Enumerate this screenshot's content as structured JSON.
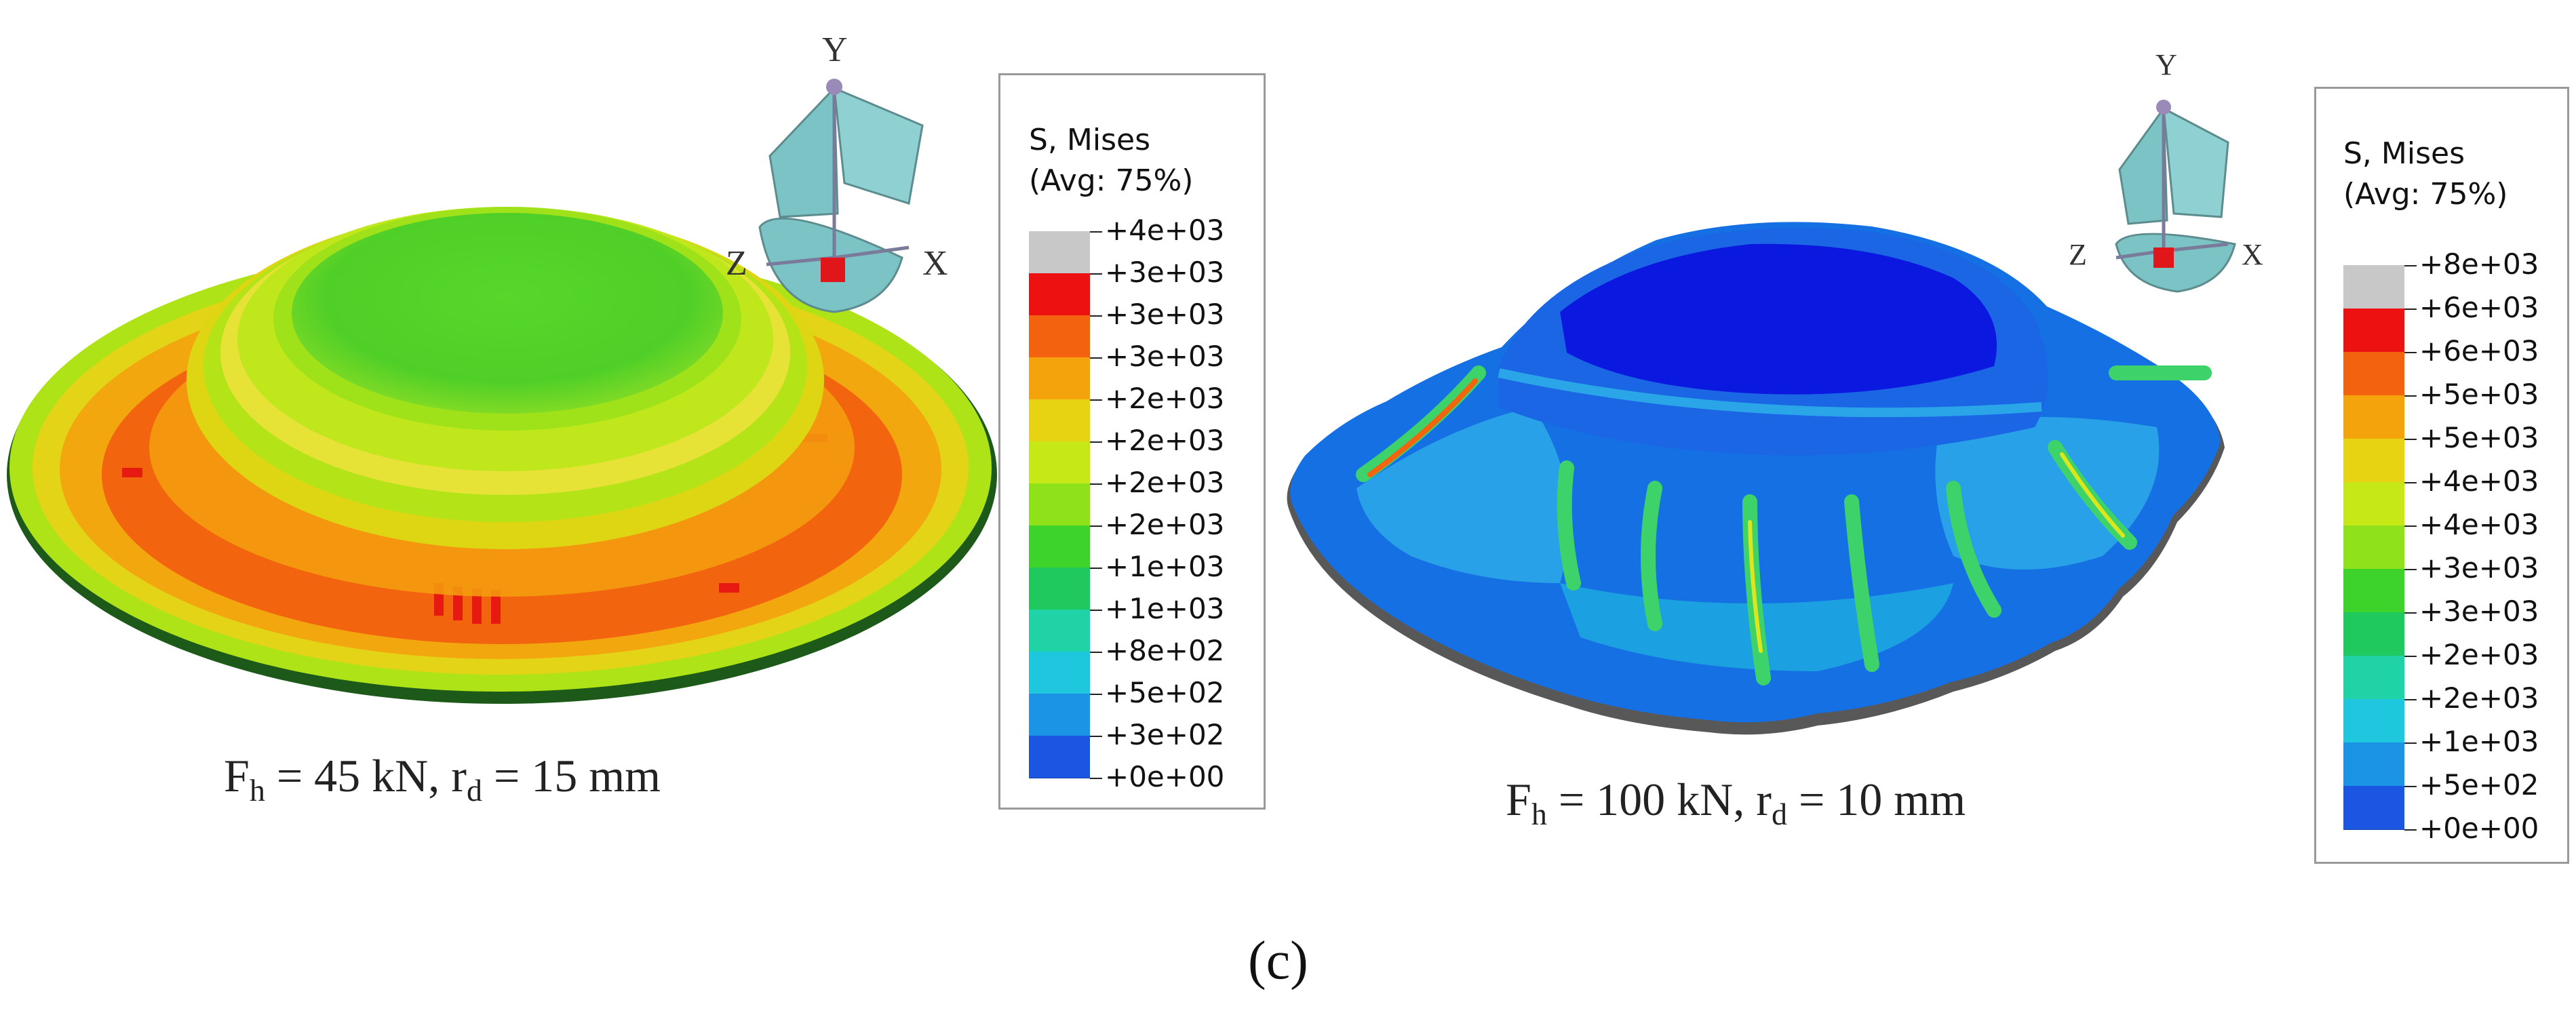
{
  "figure": {
    "panel_label": "(c)",
    "left": {
      "caption": {
        "F": "F",
        "F_sub": "h",
        "F_value": " = 45 kN, r",
        "r_sub": "d",
        "r_value": " = 15 mm"
      },
      "triad": {
        "y": "Y",
        "x": "X",
        "z": "Z"
      },
      "legend": {
        "title_line1": "S, Mises",
        "title_line2": "(Avg: 75%)",
        "values": [
          "+4e+03",
          "+3e+03",
          "+3e+03",
          "+3e+03",
          "+2e+03",
          "+2e+03",
          "+2e+03",
          "+2e+03",
          "+1e+03",
          "+1e+03",
          "+8e+02",
          "+5e+02",
          "+3e+02",
          "+0e+00"
        ]
      }
    },
    "right": {
      "caption": {
        "F": "F",
        "F_sub": "h",
        "F_value": " = 100 kN, r",
        "r_sub": "d",
        "r_value": " = 10 mm"
      },
      "triad": {
        "y": "Y",
        "x": "X",
        "z": "Z"
      },
      "legend": {
        "title_line1": "S, Mises",
        "title_line2": "(Avg: 75%)",
        "values": [
          "+8e+03",
          "+6e+03",
          "+6e+03",
          "+5e+03",
          "+5e+03",
          "+4e+03",
          "+4e+03",
          "+3e+03",
          "+3e+03",
          "+2e+03",
          "+2e+03",
          "+1e+03",
          "+5e+02",
          "+0e+00"
        ]
      }
    },
    "colors": {
      "contour": [
        "#c8c8c8",
        "#ee1111",
        "#f2620f",
        "#f5a30d",
        "#e8d312",
        "#c6e816",
        "#8fe21a",
        "#3ed32a",
        "#20c95e",
        "#1fd3a6",
        "#1ec7de",
        "#1c94e6",
        "#1a56e2",
        "#0b16e0"
      ]
    }
  }
}
